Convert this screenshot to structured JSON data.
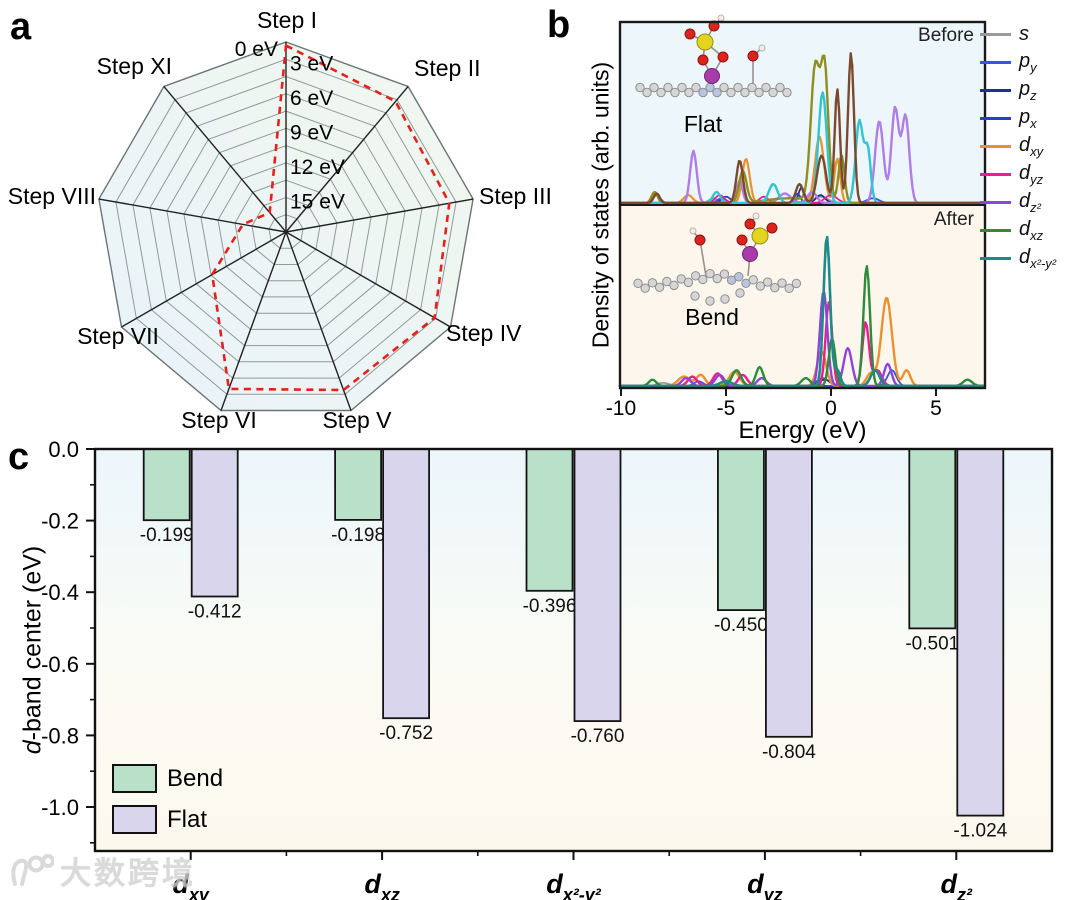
{
  "panels": {
    "a": {
      "letter": "a"
    },
    "b": {
      "letter": "b",
      "ylabel": "Density of states (arb. units)",
      "xlabel": "Energy (eV)"
    },
    "c": {
      "letter": "c",
      "ylabel_italic": "d",
      "ylabel_rest": "-band center (eV)"
    }
  },
  "watermark": {
    "text": "大数跨境",
    "logo": "swirl-100-logo"
  },
  "chart_data": [
    {
      "type": "radar",
      "panel": "a",
      "axes": [
        "Step I",
        "Step II",
        "Step III",
        "Step IV",
        "Step V",
        "Step VI",
        "Step VII",
        "Step VIII",
        "Step XI"
      ],
      "radial_tick_labels": [
        "0 eV",
        "3 eV",
        "6 eV",
        "9 eV",
        "12 eV",
        "15 eV"
      ],
      "radial_ticks": [
        0,
        3,
        6,
        9,
        12,
        15
      ],
      "radial_axis_inverted": true,
      "center_value": 16.5,
      "ring_step": 1.5,
      "grid_color": "#8f9a9a",
      "spoke_color": "#222222",
      "series": [
        {
          "name": "dashed-red-energy-profile",
          "color": "#e6201a",
          "style": "dashed",
          "values_eV": [
            0.3,
            1.7,
            2.1,
            1.6,
            1.9,
            2.0,
            9.1,
            12.7,
            14.3
          ]
        }
      ]
    },
    {
      "type": "line",
      "panel": "b",
      "xlabel": "Energy (eV)",
      "ylabel": "Density of states (arb. units)",
      "xlim": [
        -10.05,
        7.33
      ],
      "xticks": [
        -10,
        -5,
        0,
        5
      ],
      "grid": false,
      "legend_position": "right",
      "legend": [
        {
          "base": "s",
          "sub": "",
          "color": "#9a9a9a"
        },
        {
          "base": "p",
          "sub": "y",
          "color": "#3a53e0"
        },
        {
          "base": "p",
          "sub": "z",
          "color": "#1d2f8f"
        },
        {
          "base": "p",
          "sub": "x",
          "color": "#2a3fc0"
        },
        {
          "base": "d",
          "sub": "xy",
          "color": "#e8912d"
        },
        {
          "base": "d",
          "sub": "yz",
          "color": "#ea1f8e"
        },
        {
          "base": "d",
          "sub": "z²",
          "color": "#8b46d9"
        },
        {
          "base": "d",
          "sub": "xz",
          "color": "#2e8b3a"
        },
        {
          "base": "d",
          "sub": "x²-y²",
          "color": "#1f8a8a"
        }
      ],
      "panels": [
        {
          "label": "Before",
          "inset_label": "Flat",
          "background": "#edf6fa",
          "series": [
            {
              "name": "s",
              "color": "#9a9a9a",
              "width": 1.8,
              "peaks": [
                [
                  -8.3,
                  0.05,
                  0.25
                ],
                [
                  -5.6,
                  0.03,
                  0.3
                ],
                [
                  -0.5,
                  0.04,
                  0.5
                ]
              ]
            },
            {
              "name": "p_y",
              "color": "#3a53e0",
              "width": 1.8,
              "peaks": [
                [
                  -5.2,
                  0.03,
                  0.3
                ],
                [
                  2.0,
                  0.03,
                  0.4
                ]
              ]
            },
            {
              "name": "p_z",
              "color": "#1d2f8f",
              "width": 1.8,
              "peaks": [
                [
                  -1.4,
                  0.1,
                  0.2
                ],
                [
                  -0.5,
                  0.05,
                  0.3
                ]
              ]
            },
            {
              "name": "p_x",
              "color": "#2a3fc0",
              "width": 1.8,
              "peaks": [
                [
                  -5.0,
                  0.04,
                  0.3
                ],
                [
                  -1.6,
                  0.06,
                  0.2
                ]
              ]
            },
            {
              "name": "d_xy",
              "color": "#e8912d",
              "width": 2.2,
              "peaks": [
                [
                  -6.8,
                  0.05,
                  0.3
                ],
                [
                  -4.05,
                  0.28,
                  0.25
                ],
                [
                  -0.55,
                  0.42,
                  0.3
                ],
                [
                  0.3,
                  0.28,
                  0.2
                ]
              ]
            },
            {
              "name": "d_yz",
              "color": "#ea1f8e",
              "width": 1.8,
              "peaks": [
                [
                  -5.3,
                  0.05,
                  0.3
                ],
                [
                  -3.2,
                  0.04,
                  0.3
                ],
                [
                  0.0,
                  0.05,
                  0.4
                ]
              ]
            },
            {
              "name": "d_z2",
              "color": "#b07de8",
              "width": 2.4,
              "peaks": [
                [
                  -6.55,
                  0.33,
                  0.22
                ],
                [
                  -4.35,
                  0.14,
                  0.2
                ],
                [
                  -2.2,
                  0.06,
                  0.4
                ],
                [
                  -0.9,
                  0.07,
                  0.3
                ],
                [
                  2.3,
                  0.52,
                  0.28
                ],
                [
                  3.05,
                  0.6,
                  0.25
                ],
                [
                  3.55,
                  0.55,
                  0.25
                ]
              ]
            },
            {
              "name": "d_xz",
              "color": "#8f8f1f",
              "width": 2.4,
              "peaks": [
                [
                  -8.4,
                  0.07,
                  0.2
                ],
                [
                  -4.2,
                  0.2,
                  0.25
                ],
                [
                  -2.0,
                  0.03,
                  1.5
                ],
                [
                  -0.75,
                  0.85,
                  0.3
                ],
                [
                  -0.3,
                  0.82,
                  0.25
                ],
                [
                  0.5,
                  0.3,
                  0.2
                ]
              ]
            },
            {
              "name": "d_x2-y2",
              "color": "#30c5d2",
              "width": 2.4,
              "peaks": [
                [
                  -5.45,
                  0.07,
                  0.25
                ],
                [
                  -2.75,
                  0.12,
                  0.3
                ],
                [
                  -0.4,
                  0.7,
                  0.28
                ],
                [
                  1.35,
                  0.52,
                  0.25
                ],
                [
                  1.75,
                  0.33,
                  0.2
                ]
              ]
            },
            {
              "name": "brown_overlap_curve",
              "color": "#7b4a2e",
              "width": 2.4,
              "peaks": [
                [
                  -8.3,
                  0.06,
                  0.2
                ],
                [
                  -4.35,
                  0.27,
                  0.22
                ],
                [
                  -1.5,
                  0.12,
                  0.25
                ],
                [
                  -0.45,
                  0.3,
                  0.3
                ],
                [
                  0.3,
                  0.72,
                  0.18
                ],
                [
                  0.95,
                  0.95,
                  0.2
                ]
              ]
            }
          ]
        },
        {
          "label": "After",
          "inset_label": "Bend",
          "background": "#fcf6ec",
          "series": [
            {
              "name": "s",
              "color": "#9a9a9a",
              "width": 1.8,
              "peaks": [
                [
                  -8.0,
                  0.02,
                  0.4
                ]
              ]
            },
            {
              "name": "p_y",
              "color": "#3a53e0",
              "width": 1.8,
              "peaks": [
                [
                  -6.3,
                  0.03,
                  0.3
                ],
                [
                  -0.4,
                  0.05,
                  0.4
                ],
                [
                  2.9,
                  0.1,
                  0.3
                ]
              ]
            },
            {
              "name": "p_z",
              "color": "#1d2f8f",
              "width": 1.8,
              "peaks": [
                [
                  -0.3,
                  0.04,
                  0.4
                ]
              ]
            },
            {
              "name": "p_x",
              "color": "#2a3fc0",
              "width": 1.8,
              "peaks": [
                [
                  -5.0,
                  0.03,
                  0.4
                ]
              ]
            },
            {
              "name": "d_xy",
              "color": "#e8912d",
              "width": 2.4,
              "peaks": [
                [
                  -7.0,
                  0.06,
                  0.4
                ],
                [
                  -6.2,
                  0.07,
                  0.3
                ],
                [
                  -4.6,
                  0.09,
                  0.35
                ],
                [
                  -0.45,
                  0.22,
                  0.3
                ],
                [
                  1.9,
                  0.08,
                  0.3
                ],
                [
                  2.65,
                  0.56,
                  0.35
                ],
                [
                  3.6,
                  0.1,
                  0.25
                ]
              ]
            },
            {
              "name": "d_yz",
              "color": "#ea1f8e",
              "width": 2.4,
              "peaks": [
                [
                  -6.6,
                  0.06,
                  0.3
                ],
                [
                  -5.4,
                  0.08,
                  0.3
                ],
                [
                  -4.2,
                  0.07,
                  0.3
                ],
                [
                  -0.1,
                  0.53,
                  0.22
                ],
                [
                  1.65,
                  0.4,
                  0.22
                ],
                [
                  2.2,
                  0.1,
                  0.3
                ]
              ]
            },
            {
              "name": "d_z2",
              "color": "#8b46d9",
              "width": 2.4,
              "peaks": [
                [
                  -6.9,
                  0.05,
                  0.3
                ],
                [
                  -5.3,
                  0.07,
                  0.3
                ],
                [
                  -3.3,
                  0.05,
                  0.3
                ],
                [
                  -0.35,
                  0.6,
                  0.25
                ],
                [
                  0.8,
                  0.24,
                  0.28
                ],
                [
                  2.7,
                  0.14,
                  0.25
                ]
              ]
            },
            {
              "name": "d_xz",
              "color": "#2e8b3a",
              "width": 2.4,
              "peaks": [
                [
                  -8.5,
                  0.04,
                  0.25
                ],
                [
                  -4.5,
                  0.1,
                  0.3
                ],
                [
                  -3.4,
                  0.12,
                  0.25
                ],
                [
                  -1.2,
                  0.05,
                  0.3
                ],
                [
                  0.05,
                  0.3,
                  0.22
                ],
                [
                  1.7,
                  0.76,
                  0.22
                ],
                [
                  6.5,
                  0.04,
                  0.3
                ]
              ]
            },
            {
              "name": "d_x2-y2",
              "color": "#1f8a8a",
              "width": 2.6,
              "peaks": [
                [
                  -5.0,
                  0.03,
                  0.4
                ],
                [
                  -0.2,
                  0.95,
                  0.22
                ],
                [
                  0.3,
                  0.1,
                  0.2
                ],
                [
                  2.1,
                  0.1,
                  0.3
                ]
              ]
            }
          ]
        }
      ]
    },
    {
      "type": "bar",
      "panel": "c",
      "categories": [
        {
          "base": "d",
          "sub": "xy"
        },
        {
          "base": "d",
          "sub": "xz"
        },
        {
          "base": "d",
          "sub": "x²-y²"
        },
        {
          "base": "d",
          "sub": "yz"
        },
        {
          "base": "d",
          "sub": "z²"
        }
      ],
      "series": [
        {
          "name": "Bend",
          "color": "#b9e0c8",
          "values": [
            -0.199,
            -0.198,
            -0.396,
            -0.45,
            -0.501
          ]
        },
        {
          "name": "Flat",
          "color": "#d9d5ec",
          "values": [
            -0.412,
            -0.752,
            -0.76,
            -0.804,
            -1.024
          ]
        }
      ],
      "ylabel": "d-band center (eV)",
      "ylim": [
        -1.12,
        0.0
      ],
      "yticks": [
        0.0,
        -0.2,
        -0.4,
        -0.6,
        -0.8,
        -1.0
      ],
      "value_labels": true,
      "legend_position": "bottom-left",
      "bg_top": "#ecf6fb",
      "bg_bottom": "#fdf8ee"
    }
  ]
}
